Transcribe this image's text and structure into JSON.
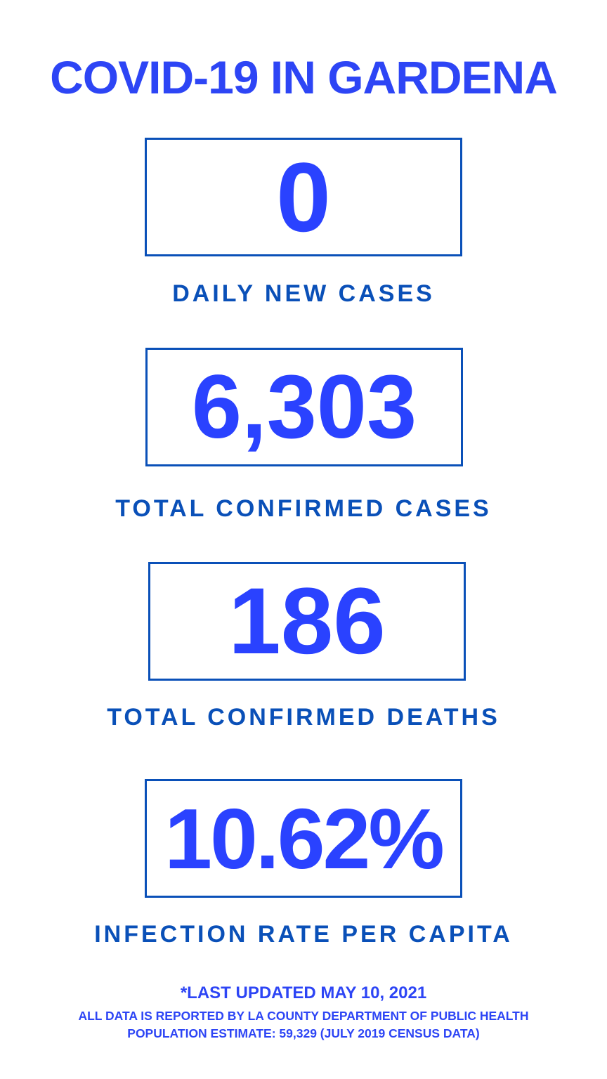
{
  "title": "COVID-19 IN GARDENA",
  "stats": [
    {
      "value": "0",
      "label": "DAILY NEW CASES"
    },
    {
      "value": "6,303",
      "label": "TOTAL CONFIRMED CASES"
    },
    {
      "value": "186",
      "label": "TOTAL CONFIRMED DEATHS"
    },
    {
      "value": "10.62%",
      "label": "INFECTION RATE PER CAPITA"
    }
  ],
  "footer": {
    "updated": "*LAST UPDATED MAY 10, 2021",
    "source": "ALL DATA IS REPORTED BY LA COUNTY DEPARTMENT OF PUBLIC HEALTH",
    "population": "POPULATION ESTIMATE: 59,329 (JULY 2019 CENSUS DATA)"
  },
  "colors": {
    "accent": "#2a42ff",
    "border": "#0a50b8"
  }
}
